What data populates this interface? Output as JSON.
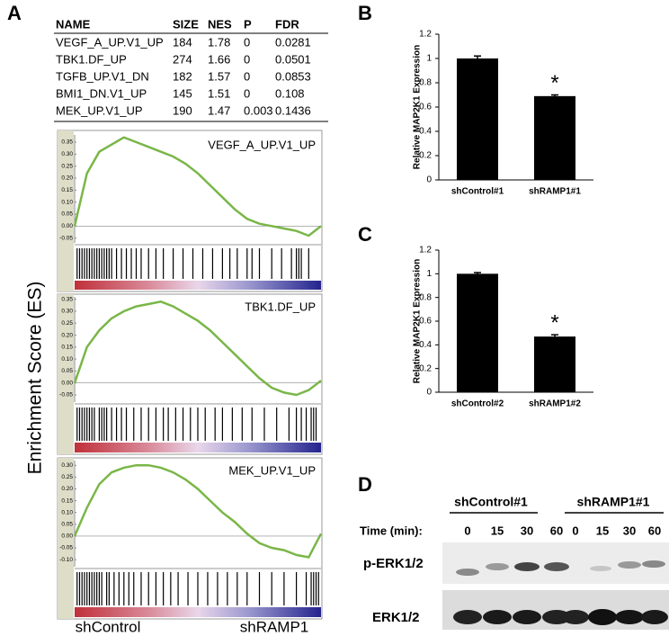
{
  "panel_labels": [
    "A",
    "B",
    "C",
    "D"
  ],
  "table": {
    "header": [
      "NAME",
      "SIZE",
      "NES",
      "P",
      "FDR"
    ],
    "rows": [
      [
        "VEGF_A_UP.V1_UP",
        "184",
        "1.78",
        "0",
        "0.0281"
      ],
      [
        "TBK1.DF_UP",
        "274",
        "1.66",
        "0",
        "0.0501"
      ],
      [
        "TGFB_UP.V1_DN",
        "182",
        "1.57",
        "0",
        "0.0853"
      ],
      [
        "BMI1_DN.V1_UP",
        "145",
        "1.51",
        "0",
        "0.108"
      ],
      [
        "MEK_UP.V1_UP",
        "190",
        "1.47",
        "0.003",
        "0.1436"
      ]
    ]
  },
  "gsea_y_label": "Enrichment Score (ES)",
  "gsea_x_labels": [
    "shControl",
    "shRAMP1"
  ],
  "chart_data": [
    {
      "type": "line",
      "title": "VEGF_A_UP.V1_UP",
      "color": "#7ab648",
      "values": [
        0,
        0.22,
        0.31,
        0.34,
        0.37,
        0.35,
        0.33,
        0.31,
        0.29,
        0.26,
        0.22,
        0.17,
        0.12,
        0.07,
        0.03,
        0.01,
        0.0,
        -0.01,
        -0.02,
        -0.04,
        0.0
      ],
      "ylim": [
        -0.07,
        0.38
      ],
      "yticks": [
        0.35,
        {
          "value": 0.3,
          "label": "0.30"
        },
        0.25,
        {
          "value": 0.2,
          "label": "0.20"
        },
        0.15,
        {
          "value": 0.1,
          "label": "0.10"
        },
        0.05,
        {
          "value": 0,
          "label": "0.00"
        },
        -0.05
      ],
      "hits": [
        1,
        2,
        3,
        4,
        5,
        6,
        7,
        8,
        9,
        10,
        11,
        12,
        13,
        14,
        15,
        17,
        19,
        21,
        23,
        25,
        27,
        30,
        33,
        36,
        40,
        44,
        48,
        52,
        56,
        60,
        63,
        66,
        70,
        72,
        75,
        80,
        84,
        88,
        90,
        91,
        92,
        95
      ]
    },
    {
      "type": "line",
      "title": "TBK1.DF_UP",
      "color": "#7ab648",
      "values": [
        0,
        0.15,
        0.22,
        0.27,
        0.3,
        0.32,
        0.33,
        0.34,
        0.32,
        0.29,
        0.26,
        0.22,
        0.17,
        0.12,
        0.07,
        0.02,
        -0.02,
        -0.04,
        -0.05,
        -0.03,
        0.01
      ],
      "ylim": [
        -0.08,
        0.36
      ],
      "yticks": [
        0.35,
        {
          "value": 0.3,
          "label": "0.30"
        },
        0.25,
        {
          "value": 0.2,
          "label": "0.20"
        },
        0.15,
        {
          "value": 0.1,
          "label": "0.10"
        },
        0.05,
        {
          "value": 0,
          "label": "0.00"
        },
        -0.05
      ],
      "hits": [
        1,
        2,
        3,
        4,
        5,
        6,
        7,
        8,
        10,
        11,
        12,
        13,
        15,
        17,
        19,
        21,
        24,
        27,
        30,
        33,
        36,
        38,
        41,
        44,
        47,
        50,
        53,
        57,
        60,
        64,
        68,
        72,
        77,
        82,
        87,
        90,
        92,
        94,
        96,
        97,
        98
      ]
    },
    {
      "type": "line",
      "title": "MEK_UP.V1_UP",
      "color": "#7ab648",
      "values": [
        0,
        0.12,
        0.22,
        0.27,
        0.29,
        0.3,
        0.3,
        0.29,
        0.27,
        0.24,
        0.2,
        0.15,
        0.1,
        0.06,
        0.01,
        -0.03,
        -0.05,
        -0.06,
        -0.08,
        -0.09,
        0.01
      ],
      "ylim": [
        -0.13,
        0.32
      ],
      "yticks": [
        {
          "value": 0.3,
          "label": "0.30"
        },
        0.25,
        {
          "value": 0.2,
          "label": "0.20"
        },
        0.15,
        {
          "value": 0.1,
          "label": "0.10"
        },
        0.05,
        {
          "value": 0,
          "label": "0.00"
        },
        -0.05,
        {
          "value": -0.1,
          "label": "-0.10"
        }
      ],
      "hits": [
        1,
        2,
        3,
        4,
        5,
        6,
        7,
        8,
        9,
        10,
        11,
        13,
        14,
        16,
        18,
        20,
        22,
        24,
        27,
        30,
        33,
        36,
        39,
        42,
        46,
        50,
        54,
        58,
        62,
        66,
        70,
        75,
        80,
        85,
        90,
        94,
        96,
        97,
        98,
        99
      ]
    },
    {
      "type": "bar",
      "y_label": "Relative MAP2K1 Expression",
      "color": "#000000",
      "categories": [
        "shControl#1",
        "shRAMP1#1"
      ],
      "values": [
        1,
        0.69
      ],
      "errors": [
        0.02,
        0.01
      ],
      "annotation": "*",
      "ylim": [
        0,
        1.2
      ],
      "yticks": [
        0,
        0.2,
        0.4,
        0.6,
        0.8,
        1,
        1.2
      ]
    },
    {
      "type": "bar",
      "y_label": "Relative MAP2K1 Expression",
      "color": "#000000",
      "categories": [
        "shControl#2",
        "shRAMP1#2"
      ],
      "values": [
        1,
        0.47
      ],
      "errors": [
        0.01,
        0.015
      ],
      "annotation": "*",
      "ylim": [
        0,
        1.2
      ],
      "yticks": [
        0,
        0.2,
        0.4,
        0.6,
        0.8,
        1,
        1.2
      ]
    }
  ],
  "blot": {
    "groups": [
      "shControl#1",
      "shRAMP1#1"
    ],
    "time_label": "Time (min):",
    "times": [
      "0",
      "15",
      "30",
      "60",
      "0",
      "15",
      "30",
      "60"
    ],
    "rows": [
      "p-ERK1/2",
      "ERK1/2"
    ]
  }
}
